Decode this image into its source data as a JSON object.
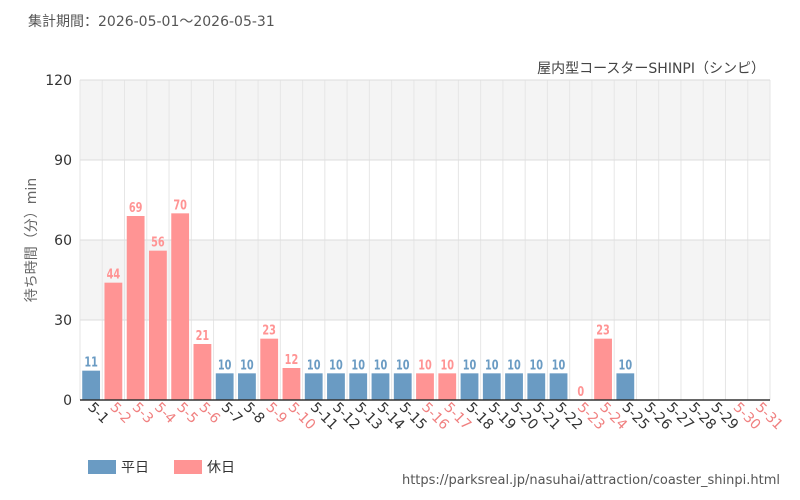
{
  "header": {
    "period": "集計期間：2026-05-01～2026-05-31"
  },
  "source": "https://parksreal.jp/nasuhai/attraction/coaster_shinpi.html",
  "legend": {
    "weekday": "平日",
    "holiday": "休日"
  },
  "colors": {
    "weekday": "#6a9bc3",
    "holiday": "#ff9494"
  },
  "chart_data": {
    "type": "bar",
    "title": "屋内型コースターSHINPI（シンピ）",
    "ylabel": "待ち時間（分）min",
    "ylim": [
      0,
      120
    ],
    "yticks": [
      "0",
      "30",
      "60",
      "90",
      "120"
    ],
    "grid": true,
    "legend_position": "bottom-left",
    "categories": [
      "5-1",
      "5-2",
      "5-3",
      "5-4",
      "5-5",
      "5-6",
      "5-7",
      "5-8",
      "5-9",
      "5-10",
      "5-11",
      "5-12",
      "5-13",
      "5-14",
      "5-15",
      "5-16",
      "5-17",
      "5-18",
      "5-19",
      "5-20",
      "5-21",
      "5-22",
      "5-23",
      "5-24",
      "5-25",
      "5-26",
      "5-27",
      "5-28",
      "5-29",
      "5-30",
      "5-31"
    ],
    "values": [
      11,
      44,
      69,
      56,
      70,
      21,
      10,
      10,
      23,
      12,
      10,
      10,
      10,
      10,
      10,
      10,
      10,
      10,
      10,
      10,
      10,
      10,
      0,
      23,
      10,
      null,
      null,
      null,
      null,
      null,
      null
    ],
    "day_type": [
      "weekday",
      "holiday",
      "holiday",
      "holiday",
      "holiday",
      "holiday",
      "weekday",
      "weekday",
      "holiday",
      "holiday",
      "weekday",
      "weekday",
      "weekday",
      "weekday",
      "weekday",
      "holiday",
      "holiday",
      "weekday",
      "weekday",
      "weekday",
      "weekday",
      "weekday",
      "holiday",
      "holiday",
      "weekday",
      "weekday",
      "weekday",
      "weekday",
      "weekday",
      "holiday",
      "holiday"
    ]
  }
}
